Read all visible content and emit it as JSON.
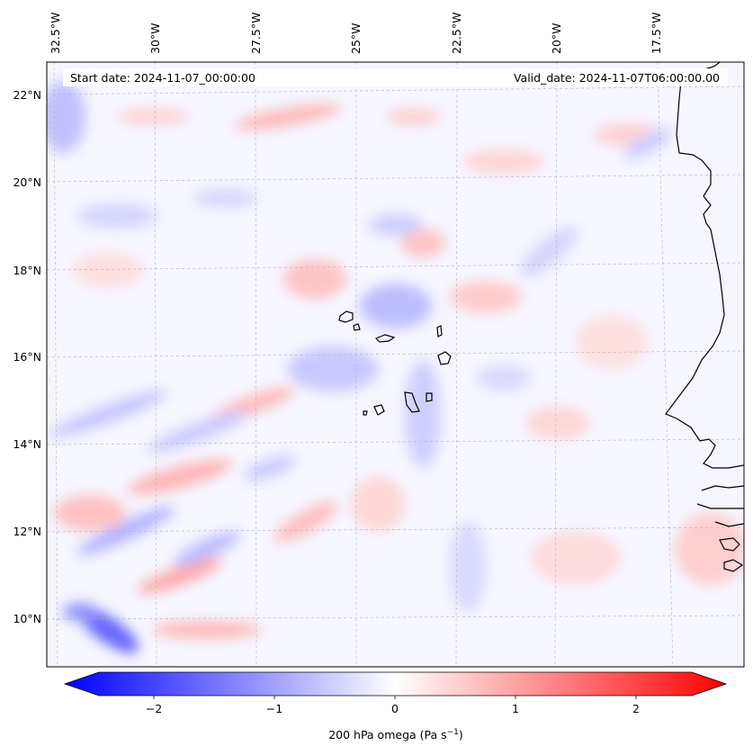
{
  "header": {
    "start_date": "Start date: 2024-11-07_00:00:00",
    "valid_date": "Valid_date: 2024-11-07T06:00:00.00"
  },
  "map": {
    "lon_labels": [
      "32.5°W",
      "30°W",
      "27.5°W",
      "25°W",
      "22.5°W",
      "20°W",
      "17.5°W"
    ],
    "lat_labels": [
      "22°N",
      "20°N",
      "18°N",
      "16°N",
      "14°N",
      "12°N",
      "10°N"
    ],
    "gridlines": true,
    "coastline_color": "#000000"
  },
  "colorbar": {
    "label_main": "200 hPa omega (Pa s",
    "label_exp": "−1",
    "label_close": ")",
    "ticks": [
      "−2",
      "−1",
      "0",
      "1",
      "2"
    ],
    "min": -2.6,
    "max": 2.6,
    "cmap_low": "#0000ff",
    "cmap_mid": "#ffffff",
    "cmap_high": "#ff0000"
  }
}
